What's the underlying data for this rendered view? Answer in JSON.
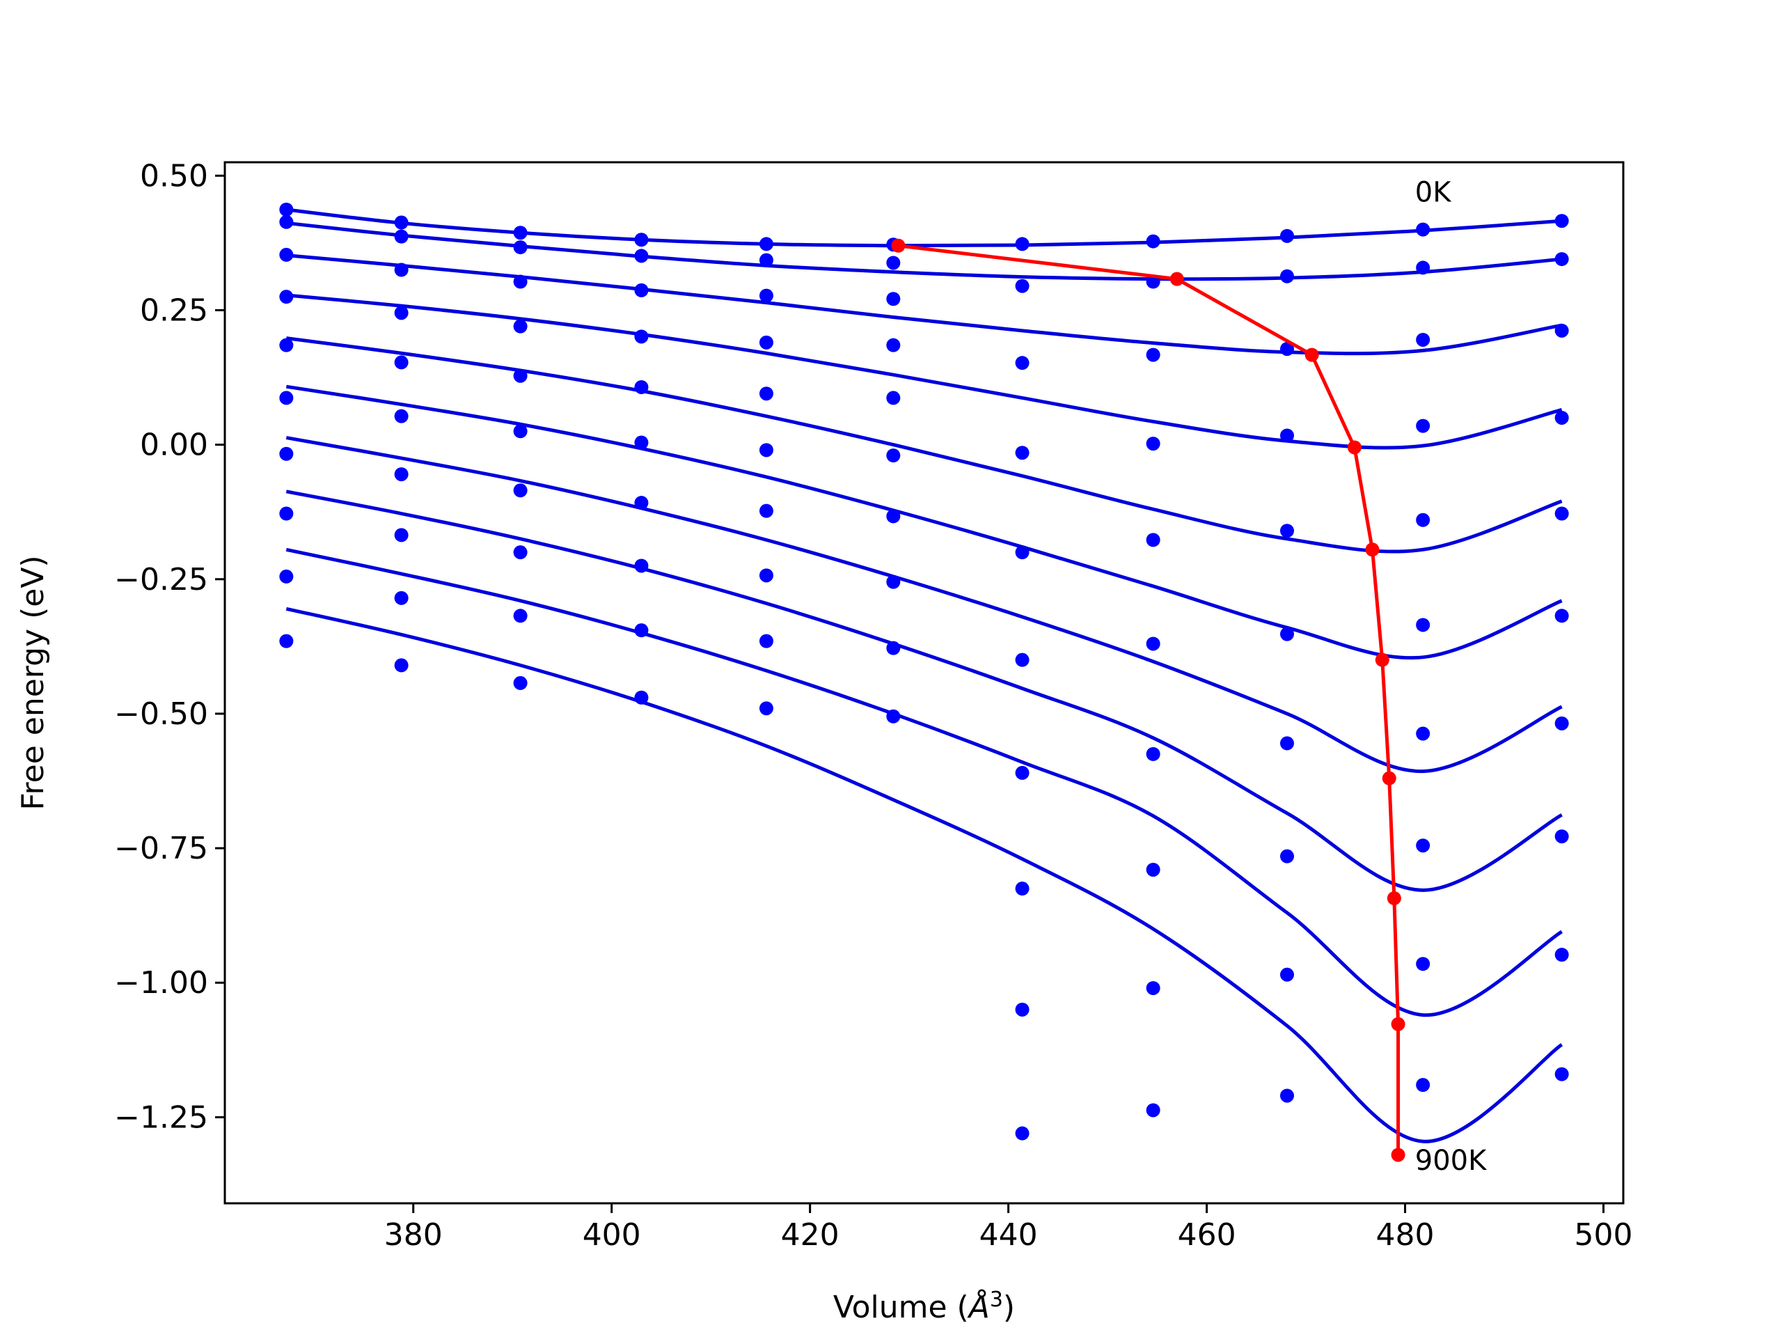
{
  "chart_data": {
    "type": "scatter",
    "title": "",
    "xlabel": "Volume (",
    "xlabel_unit": "Å",
    "xlabel_sup": "3",
    "xlabel_close": ")",
    "ylabel": "Free energy (eV)",
    "xlim": [
      361,
      502
    ],
    "ylim": [
      -1.41,
      0.525
    ],
    "xticks": [
      380,
      400,
      420,
      440,
      460,
      480,
      500
    ],
    "yticks": [
      0.5,
      0.25,
      0.0,
      -0.25,
      -0.5,
      -0.75,
      -1.0,
      -1.25
    ],
    "xtick_labels": [
      "380",
      "400",
      "420",
      "440",
      "460",
      "480",
      "500"
    ],
    "ytick_labels": [
      "0.50",
      "0.25",
      "0.00",
      "−0.25",
      "−0.50",
      "−0.75",
      "−1.00",
      "−1.25"
    ],
    "annotations": [
      {
        "text": "0K",
        "x": 481.0,
        "y": 0.47
      },
      {
        "text": "900K",
        "x": 481.0,
        "y": -1.33
      }
    ],
    "grid": false,
    "colors": {
      "points": "#0000ff",
      "fit": "#0000dd",
      "minimum_path": "#ff0000",
      "axes": "#000000"
    },
    "volumes": [
      367.2,
      378.8,
      390.8,
      403.0,
      415.6,
      428.4,
      441.4,
      454.6,
      468.1,
      481.8,
      495.8
    ],
    "series": [
      {
        "values": [
          0.437,
          0.413,
          0.394,
          0.381,
          0.373,
          0.372,
          0.373,
          0.378,
          0.388,
          0.4,
          0.416
        ],
        "fit": [
          [
            367.2,
            0.437
          ],
          [
            378.8,
            0.412
          ],
          [
            390.8,
            0.394
          ],
          [
            403.0,
            0.381
          ],
          [
            415.6,
            0.373
          ],
          [
            428.4,
            0.37
          ],
          [
            441.4,
            0.371
          ],
          [
            454.6,
            0.376
          ],
          [
            468.1,
            0.385
          ],
          [
            481.8,
            0.398
          ],
          [
            495.8,
            0.416
          ]
        ]
      },
      {
        "values": [
          0.414,
          0.387,
          0.367,
          0.351,
          0.343,
          0.338,
          0.295,
          0.303,
          0.313,
          0.329,
          0.345
        ],
        "fit": [
          [
            367.2,
            0.412
          ],
          [
            378.8,
            0.389
          ],
          [
            390.8,
            0.369
          ],
          [
            403.0,
            0.35
          ],
          [
            415.6,
            0.333
          ],
          [
            428.4,
            0.321
          ],
          [
            441.4,
            0.312
          ],
          [
            454.6,
            0.308
          ],
          [
            468.1,
            0.31
          ],
          [
            481.8,
            0.321
          ],
          [
            495.8,
            0.345
          ]
        ]
      },
      {
        "values": [
          0.353,
          0.325,
          0.303,
          0.287,
          0.277,
          0.271,
          0.152,
          0.167,
          0.178,
          0.195,
          0.212
        ],
        "fit": [
          [
            367.2,
            0.352
          ],
          [
            378.8,
            0.333
          ],
          [
            390.8,
            0.312
          ],
          [
            403.0,
            0.289
          ],
          [
            415.6,
            0.264
          ],
          [
            428.4,
            0.237
          ],
          [
            441.4,
            0.212
          ],
          [
            454.6,
            0.189
          ],
          [
            468.1,
            0.172
          ],
          [
            481.8,
            0.175
          ],
          [
            495.8,
            0.222
          ]
        ]
      },
      {
        "values": [
          0.275,
          0.245,
          0.22,
          0.201,
          0.19,
          0.185,
          -0.015,
          0.002,
          0.017,
          0.035,
          0.05
        ],
        "fit": [
          [
            367.2,
            0.278
          ],
          [
            378.8,
            0.258
          ],
          [
            390.8,
            0.234
          ],
          [
            403.0,
            0.205
          ],
          [
            415.6,
            0.17
          ],
          [
            428.4,
            0.13
          ],
          [
            441.4,
            0.087
          ],
          [
            454.6,
            0.043
          ],
          [
            468.1,
            0.007
          ],
          [
            481.8,
            -0.002
          ],
          [
            495.8,
            0.065
          ]
        ]
      },
      {
        "values": [
          0.185,
          0.153,
          0.128,
          0.107,
          0.095,
          0.087,
          -0.2,
          -0.177,
          -0.16,
          -0.14,
          -0.128
        ],
        "fit": [
          [
            367.2,
            0.198
          ],
          [
            378.8,
            0.17
          ],
          [
            390.8,
            0.138
          ],
          [
            403.0,
            0.1
          ],
          [
            415.6,
            0.053
          ],
          [
            428.4,
            0.0
          ],
          [
            441.4,
            -0.058
          ],
          [
            454.6,
            -0.12
          ],
          [
            468.1,
            -0.175
          ],
          [
            481.8,
            -0.195
          ],
          [
            495.8,
            -0.105
          ]
        ]
      },
      {
        "values": [
          0.087,
          0.053,
          0.025,
          0.004,
          -0.01,
          -0.02,
          -0.4,
          -0.37,
          -0.352,
          -0.335,
          -0.318
        ],
        "fit": [
          [
            367.2,
            0.108
          ],
          [
            378.8,
            0.075
          ],
          [
            390.8,
            0.038
          ],
          [
            403.0,
            -0.007
          ],
          [
            415.6,
            -0.06
          ],
          [
            428.4,
            -0.122
          ],
          [
            441.4,
            -0.19
          ],
          [
            454.6,
            -0.263
          ],
          [
            468.1,
            -0.34
          ],
          [
            481.8,
            -0.395
          ],
          [
            495.8,
            -0.29
          ]
        ]
      },
      {
        "values": [
          -0.017,
          -0.055,
          -0.085,
          -0.108,
          -0.123,
          -0.133,
          -0.61,
          -0.575,
          -0.555,
          -0.537,
          -0.518
        ],
        "fit": [
          [
            367.2,
            0.013
          ],
          [
            378.8,
            -0.025
          ],
          [
            390.8,
            -0.067
          ],
          [
            403.0,
            -0.118
          ],
          [
            415.6,
            -0.177
          ],
          [
            428.4,
            -0.245
          ],
          [
            441.4,
            -0.32
          ],
          [
            454.6,
            -0.403
          ],
          [
            468.1,
            -0.5
          ],
          [
            481.8,
            -0.607
          ],
          [
            495.8,
            -0.487
          ]
        ]
      },
      {
        "values": [
          -0.128,
          -0.168,
          -0.2,
          -0.225,
          -0.243,
          -0.255,
          -0.825,
          -0.79,
          -0.765,
          -0.745,
          -0.728
        ],
        "fit": [
          [
            367.2,
            -0.087
          ],
          [
            378.8,
            -0.128
          ],
          [
            390.8,
            -0.175
          ],
          [
            403.0,
            -0.23
          ],
          [
            415.6,
            -0.295
          ],
          [
            428.4,
            -0.37
          ],
          [
            441.4,
            -0.453
          ],
          [
            454.6,
            -0.545
          ],
          [
            468.1,
            -0.685
          ],
          [
            481.8,
            -0.828
          ],
          [
            495.8,
            -0.688
          ]
        ]
      },
      {
        "values": [
          -0.245,
          -0.285,
          -0.318,
          -0.345,
          -0.365,
          -0.378,
          -1.05,
          -1.01,
          -0.985,
          -0.965,
          -0.948
        ],
        "fit": [
          [
            367.2,
            -0.195
          ],
          [
            378.8,
            -0.24
          ],
          [
            390.8,
            -0.29
          ],
          [
            403.0,
            -0.35
          ],
          [
            415.6,
            -0.42
          ],
          [
            428.4,
            -0.5
          ],
          [
            441.4,
            -0.59
          ],
          [
            454.6,
            -0.69
          ],
          [
            468.1,
            -0.87
          ],
          [
            481.8,
            -1.06
          ],
          [
            495.8,
            -0.905
          ]
        ]
      },
      {
        "values": [
          -0.365,
          -0.41,
          -0.443,
          -0.47,
          -0.49,
          -0.505,
          -1.28,
          -1.237,
          -1.21,
          -1.19,
          -1.17
        ],
        "fit": [
          [
            367.2,
            -0.305
          ],
          [
            378.8,
            -0.353
          ],
          [
            390.8,
            -0.41
          ],
          [
            403.0,
            -0.478
          ],
          [
            415.6,
            -0.56
          ],
          [
            428.4,
            -0.66
          ],
          [
            441.4,
            -0.77
          ],
          [
            454.6,
            -0.9
          ],
          [
            468.1,
            -1.08
          ],
          [
            481.8,
            -1.295
          ],
          [
            495.8,
            -1.115
          ]
        ]
      }
    ],
    "minimum_path": {
      "x": [
        428.9,
        457.0,
        470.6,
        474.9,
        476.7,
        477.7,
        478.4,
        478.9,
        479.3,
        479.3
      ],
      "y": [
        0.37,
        0.308,
        0.167,
        -0.005,
        -0.195,
        -0.4,
        -0.62,
        -0.843,
        -1.077,
        -1.32
      ]
    }
  }
}
